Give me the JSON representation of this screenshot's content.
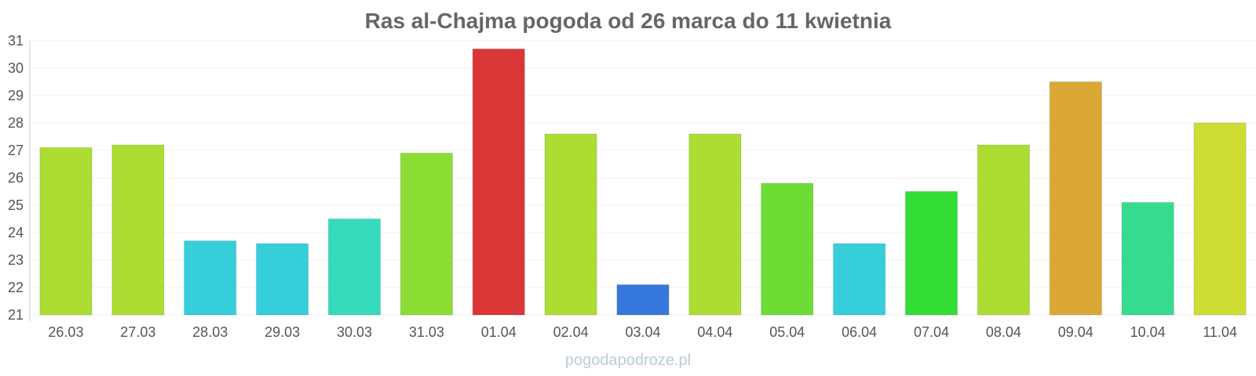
{
  "chart_data": {
    "type": "bar",
    "title": "Ras al-Chajma pogoda od 26 marca do 11 kwietnia",
    "xlabel": "",
    "ylabel": "",
    "ylim": [
      21,
      31
    ],
    "yticks": [
      "21",
      "22",
      "23",
      "24",
      "25",
      "26",
      "27",
      "28",
      "29",
      "30",
      "31"
    ],
    "grid": true,
    "categories": [
      "26.03",
      "27.03",
      "28.03",
      "29.03",
      "30.03",
      "31.03",
      "01.04",
      "02.04",
      "03.04",
      "04.04",
      "05.04",
      "06.04",
      "07.04",
      "08.04",
      "09.04",
      "10.04",
      "11.04"
    ],
    "values": [
      27.1,
      27.2,
      23.7,
      23.6,
      24.5,
      26.9,
      30.7,
      27.6,
      22.1,
      27.6,
      25.8,
      23.6,
      25.5,
      27.2,
      29.5,
      25.1,
      28.0
    ],
    "colors": [
      "#addd33",
      "#addd33",
      "#36cedb",
      "#36cedb",
      "#36dbbb",
      "#8bdd33",
      "#db3636",
      "#addd33",
      "#3677db",
      "#addd33",
      "#6ddd36",
      "#36cedb",
      "#33dd36",
      "#addd33",
      "#dba836",
      "#36db8f",
      "#cddd33"
    ]
  },
  "footer": "pogodapodroze.pl"
}
